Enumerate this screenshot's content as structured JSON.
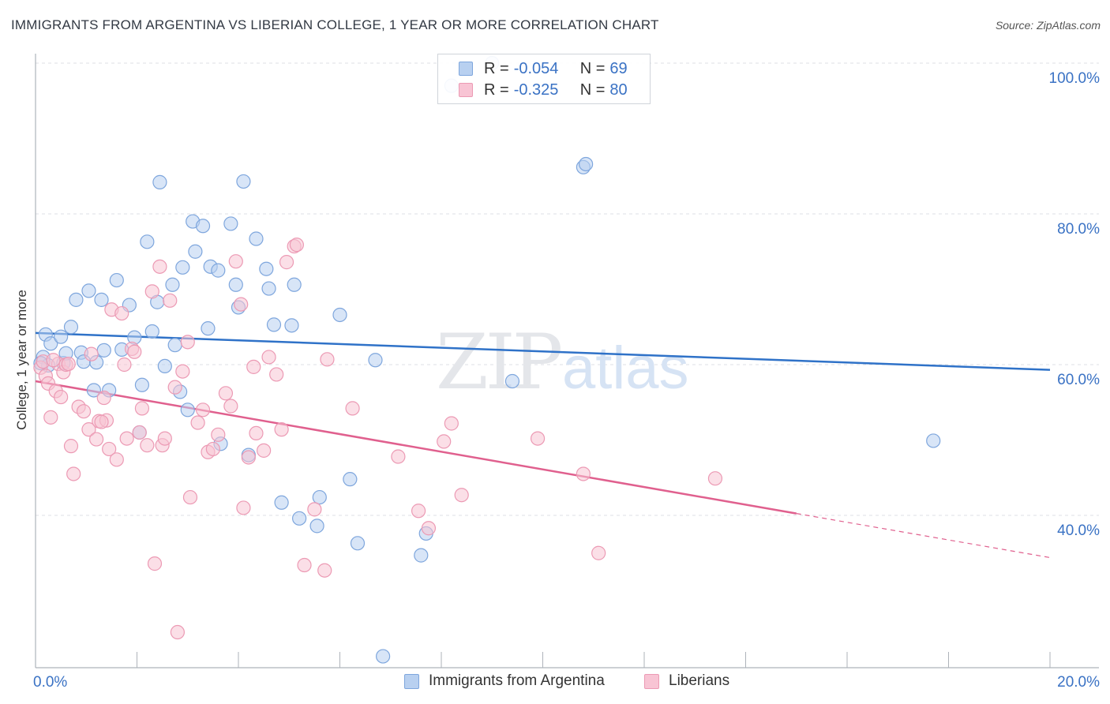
{
  "header": {
    "title": "IMMIGRANTS FROM ARGENTINA VS LIBERIAN COLLEGE, 1 YEAR OR MORE CORRELATION CHART",
    "source": "Source: ZipAtlas.com"
  },
  "watermark": {
    "part1": "ZIP",
    "part2": "atlas"
  },
  "legend": {
    "series": [
      {
        "r_label": "R =",
        "r_value": "-0.054",
        "n_label": "N =",
        "n_value": "69"
      },
      {
        "r_label": "R =",
        "r_value": "-0.325",
        "n_label": "N =",
        "n_value": "80"
      }
    ]
  },
  "bottom_legend": {
    "items": [
      {
        "label": "Immigrants from Argentina"
      },
      {
        "label": "Liberians"
      }
    ]
  },
  "colors": {
    "blue_fill": "#b8d0f0",
    "blue_stroke": "#7ea6dd",
    "blue_line": "#2f72c8",
    "pink_fill": "#f8c4d4",
    "pink_stroke": "#ec9ab4",
    "pink_line": "#e0608e",
    "tick_text": "#3a72c4",
    "grid": "#dcdfe4"
  },
  "chart_data": {
    "type": "scatter",
    "title": "IMMIGRANTS FROM ARGENTINA VS LIBERIAN COLLEGE, 1 YEAR OR MORE CORRELATION CHART",
    "xlabel": "",
    "ylabel": "College, 1 year or more",
    "xlim": [
      0,
      20
    ],
    "ylim": [
      20,
      102
    ],
    "x_tick_labels": [
      {
        "value": 0,
        "label": "0.0%"
      },
      {
        "value": 20,
        "label": "20.0%"
      }
    ],
    "y_tick_labels": [
      {
        "value": 40,
        "label": "40.0%"
      },
      {
        "value": 60,
        "label": "60.0%"
      },
      {
        "value": 80,
        "label": "80.0%"
      },
      {
        "value": 100,
        "label": "100.0%"
      }
    ],
    "y_gridlines": [
      40,
      60,
      80,
      100
    ],
    "x_minor_ticks": [
      2,
      4,
      6,
      8,
      10,
      12,
      14,
      16,
      18,
      20
    ],
    "series": [
      {
        "name": "Immigrants from Argentina",
        "color": "blue",
        "trend": {
          "x0": 0,
          "y0": 64.2,
          "x1": 20,
          "y1": 59.3,
          "dashed_from": null
        },
        "points": [
          [
            0.2,
            64.0
          ],
          [
            0.3,
            62.8
          ],
          [
            0.5,
            63.7
          ],
          [
            0.7,
            65.0
          ],
          [
            0.8,
            68.6
          ],
          [
            0.9,
            61.6
          ],
          [
            0.95,
            60.4
          ],
          [
            1.05,
            69.8
          ],
          [
            1.15,
            56.6
          ],
          [
            1.3,
            68.6
          ],
          [
            1.35,
            61.9
          ],
          [
            1.45,
            56.6
          ],
          [
            1.6,
            71.2
          ],
          [
            1.7,
            62.0
          ],
          [
            1.85,
            67.9
          ],
          [
            1.95,
            63.6
          ],
          [
            2.05,
            51.0
          ],
          [
            2.1,
            57.3
          ],
          [
            2.2,
            76.3
          ],
          [
            2.3,
            64.4
          ],
          [
            2.4,
            68.3
          ],
          [
            2.45,
            84.2
          ],
          [
            2.55,
            59.8
          ],
          [
            2.7,
            70.6
          ],
          [
            2.75,
            62.6
          ],
          [
            2.85,
            56.4
          ],
          [
            2.9,
            72.9
          ],
          [
            3.0,
            54.0
          ],
          [
            3.1,
            79.0
          ],
          [
            3.15,
            75.0
          ],
          [
            3.3,
            78.4
          ],
          [
            3.4,
            64.8
          ],
          [
            3.45,
            73.0
          ],
          [
            3.6,
            72.5
          ],
          [
            3.65,
            49.5
          ],
          [
            3.85,
            78.7
          ],
          [
            3.95,
            70.6
          ],
          [
            4.0,
            67.6
          ],
          [
            4.1,
            84.3
          ],
          [
            4.2,
            48.0
          ],
          [
            4.35,
            76.7
          ],
          [
            4.55,
            72.7
          ],
          [
            4.6,
            70.1
          ],
          [
            4.7,
            65.3
          ],
          [
            4.85,
            41.7
          ],
          [
            5.05,
            65.2
          ],
          [
            5.1,
            70.6
          ],
          [
            5.2,
            39.6
          ],
          [
            5.55,
            38.6
          ],
          [
            5.6,
            42.4
          ],
          [
            6.0,
            66.6
          ],
          [
            6.2,
            44.8
          ],
          [
            6.35,
            36.3
          ],
          [
            6.7,
            60.6
          ],
          [
            6.85,
            21.3
          ],
          [
            7.6,
            34.7
          ],
          [
            7.7,
            37.6
          ],
          [
            8.2,
            97.0
          ],
          [
            9.0,
            100.0
          ],
          [
            9.4,
            57.8
          ],
          [
            10.8,
            86.2
          ],
          [
            10.85,
            86.6
          ],
          [
            17.7,
            49.9
          ],
          [
            0.15,
            61.0
          ],
          [
            0.25,
            59.9
          ],
          [
            0.55,
            60.2
          ],
          [
            1.2,
            60.3
          ],
          [
            0.6,
            61.5
          ],
          [
            0.1,
            60.2
          ]
        ]
      },
      {
        "name": "Liberians",
        "color": "pink",
        "trend": {
          "x0": 0,
          "y0": 57.8,
          "x1": 20,
          "y1": 34.4,
          "dashed_from": 15.0
        },
        "points": [
          [
            0.1,
            59.6
          ],
          [
            0.15,
            60.4
          ],
          [
            0.2,
            58.5
          ],
          [
            0.25,
            57.5
          ],
          [
            0.3,
            53.0
          ],
          [
            0.4,
            56.5
          ],
          [
            0.45,
            60.1
          ],
          [
            0.5,
            55.7
          ],
          [
            0.55,
            59.0
          ],
          [
            0.6,
            60.0
          ],
          [
            0.7,
            49.2
          ],
          [
            0.75,
            45.5
          ],
          [
            0.85,
            54.4
          ],
          [
            0.95,
            53.8
          ],
          [
            1.05,
            51.4
          ],
          [
            1.1,
            61.4
          ],
          [
            1.2,
            50.1
          ],
          [
            1.25,
            52.5
          ],
          [
            1.35,
            55.6
          ],
          [
            1.4,
            52.6
          ],
          [
            1.45,
            48.8
          ],
          [
            1.5,
            67.3
          ],
          [
            1.6,
            47.4
          ],
          [
            1.7,
            66.8
          ],
          [
            1.75,
            60.0
          ],
          [
            1.8,
            50.2
          ],
          [
            1.9,
            62.1
          ],
          [
            1.95,
            61.7
          ],
          [
            2.05,
            51.0
          ],
          [
            2.1,
            54.2
          ],
          [
            2.2,
            49.3
          ],
          [
            2.3,
            69.7
          ],
          [
            2.35,
            33.6
          ],
          [
            2.45,
            73.0
          ],
          [
            2.5,
            49.3
          ],
          [
            2.55,
            50.2
          ],
          [
            2.65,
            68.5
          ],
          [
            2.75,
            57.0
          ],
          [
            2.8,
            24.5
          ],
          [
            2.9,
            59.1
          ],
          [
            3.0,
            63.0
          ],
          [
            3.05,
            42.4
          ],
          [
            3.2,
            52.3
          ],
          [
            3.3,
            54.0
          ],
          [
            3.4,
            48.4
          ],
          [
            3.5,
            48.8
          ],
          [
            3.6,
            50.7
          ],
          [
            3.75,
            56.2
          ],
          [
            3.85,
            54.5
          ],
          [
            3.95,
            73.7
          ],
          [
            4.05,
            68.0
          ],
          [
            4.1,
            41.0
          ],
          [
            4.2,
            47.7
          ],
          [
            4.3,
            59.7
          ],
          [
            4.35,
            50.9
          ],
          [
            4.5,
            48.6
          ],
          [
            4.6,
            61.0
          ],
          [
            4.75,
            58.7
          ],
          [
            4.85,
            51.4
          ],
          [
            4.95,
            73.6
          ],
          [
            5.1,
            75.7
          ],
          [
            5.15,
            75.9
          ],
          [
            5.3,
            33.4
          ],
          [
            5.5,
            40.8
          ],
          [
            5.7,
            32.7
          ],
          [
            5.75,
            60.7
          ],
          [
            6.25,
            54.2
          ],
          [
            7.15,
            47.8
          ],
          [
            7.55,
            40.6
          ],
          [
            7.75,
            38.3
          ],
          [
            8.05,
            49.8
          ],
          [
            8.2,
            52.2
          ],
          [
            8.4,
            42.7
          ],
          [
            9.9,
            50.2
          ],
          [
            10.8,
            45.5
          ],
          [
            11.1,
            35.0
          ],
          [
            13.4,
            44.9
          ],
          [
            0.35,
            60.6
          ],
          [
            0.65,
            60.1
          ],
          [
            1.3,
            52.4
          ]
        ]
      }
    ]
  }
}
